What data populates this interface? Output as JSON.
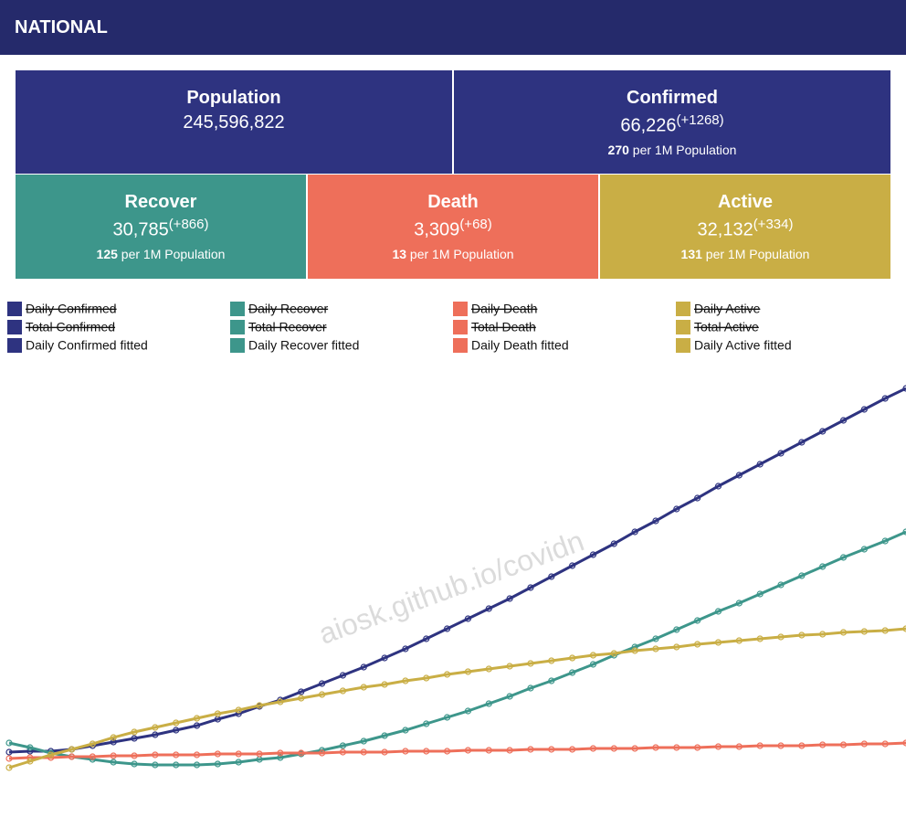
{
  "header": {
    "title": "NATIONAL"
  },
  "cards": [
    {
      "label": "Population",
      "value": "245,596,822",
      "color": "#2e3380"
    },
    {
      "label": "Confirmed",
      "value": "66,226",
      "delta": "(+1268)",
      "per_value": "270",
      "per_label": "per 1M Population",
      "color": "#2e3380"
    },
    {
      "label": "Recover",
      "value": "30,785",
      "delta": "(+866)",
      "per_value": "125",
      "per_label": "per 1M Population",
      "color": "#3d968b"
    },
    {
      "label": "Death",
      "value": "3,309",
      "delta": "(+68)",
      "per_value": "13",
      "per_label": "per 1M Population",
      "color": "#ee6f5a"
    },
    {
      "label": "Active",
      "value": "32,132",
      "delta": "(+334)",
      "per_value": "131",
      "per_label": "per 1M Population",
      "color": "#c9ae45"
    }
  ],
  "chart_data": {
    "type": "line",
    "watermark": "aiosk.github.io/covidn",
    "series": [
      {
        "name": "Daily Confirmed",
        "color": "#2e3380",
        "hidden": true
      },
      {
        "name": "Daily Recover",
        "color": "#3d968b",
        "hidden": true
      },
      {
        "name": "Daily Death",
        "color": "#ee6f5a",
        "hidden": true
      },
      {
        "name": "Daily Active",
        "color": "#c9ae45",
        "hidden": true
      },
      {
        "name": "Total Confirmed",
        "color": "#2e3380",
        "hidden": true
      },
      {
        "name": "Total Recover",
        "color": "#3d968b",
        "hidden": true
      },
      {
        "name": "Total Death",
        "color": "#ee6f5a",
        "hidden": true
      },
      {
        "name": "Total Active",
        "color": "#c9ae45",
        "hidden": true
      },
      {
        "name": "Daily Confirmed fitted",
        "color": "#2e3380",
        "hidden": false,
        "values": [
          27,
          28,
          28,
          30,
          34,
          38,
          42,
          46,
          51,
          56,
          63,
          69,
          77,
          84,
          93,
          102,
          111,
          120,
          130,
          140,
          151,
          162,
          173,
          184,
          195,
          207,
          219,
          231,
          243,
          255,
          268,
          280,
          293,
          305,
          318,
          330,
          342,
          354,
          366,
          378,
          390,
          402,
          414,
          425
        ]
      },
      {
        "name": "Daily Recover fitted",
        "color": "#3d968b",
        "hidden": false,
        "values": [
          37,
          32,
          26,
          22,
          19,
          16,
          14,
          13,
          13,
          13,
          14,
          16,
          19,
          21,
          25,
          29,
          34,
          39,
          45,
          51,
          58,
          65,
          72,
          80,
          88,
          97,
          105,
          114,
          123,
          133,
          142,
          151,
          161,
          171,
          181,
          190,
          200,
          210,
          220,
          230,
          240,
          249,
          258,
          268
        ]
      },
      {
        "name": "Daily Death fitted",
        "color": "#ee6f5a",
        "hidden": false,
        "values": [
          20,
          21,
          21,
          22,
          22,
          23,
          23,
          24,
          24,
          24,
          25,
          25,
          25,
          26,
          26,
          26,
          27,
          27,
          27,
          28,
          28,
          28,
          29,
          29,
          29,
          30,
          30,
          30,
          31,
          31,
          31,
          32,
          32,
          32,
          33,
          33,
          34,
          34,
          34,
          35,
          35,
          36,
          36,
          37
        ]
      },
      {
        "name": "Daily Active fitted",
        "color": "#c9ae45",
        "hidden": false,
        "values": [
          10,
          17,
          24,
          30,
          36,
          43,
          49,
          54,
          59,
          64,
          69,
          73,
          78,
          82,
          86,
          90,
          94,
          98,
          101,
          105,
          108,
          112,
          115,
          118,
          121,
          124,
          127,
          130,
          133,
          135,
          138,
          140,
          142,
          145,
          147,
          149,
          151,
          153,
          155,
          156,
          158,
          159,
          160,
          162
        ]
      }
    ]
  }
}
